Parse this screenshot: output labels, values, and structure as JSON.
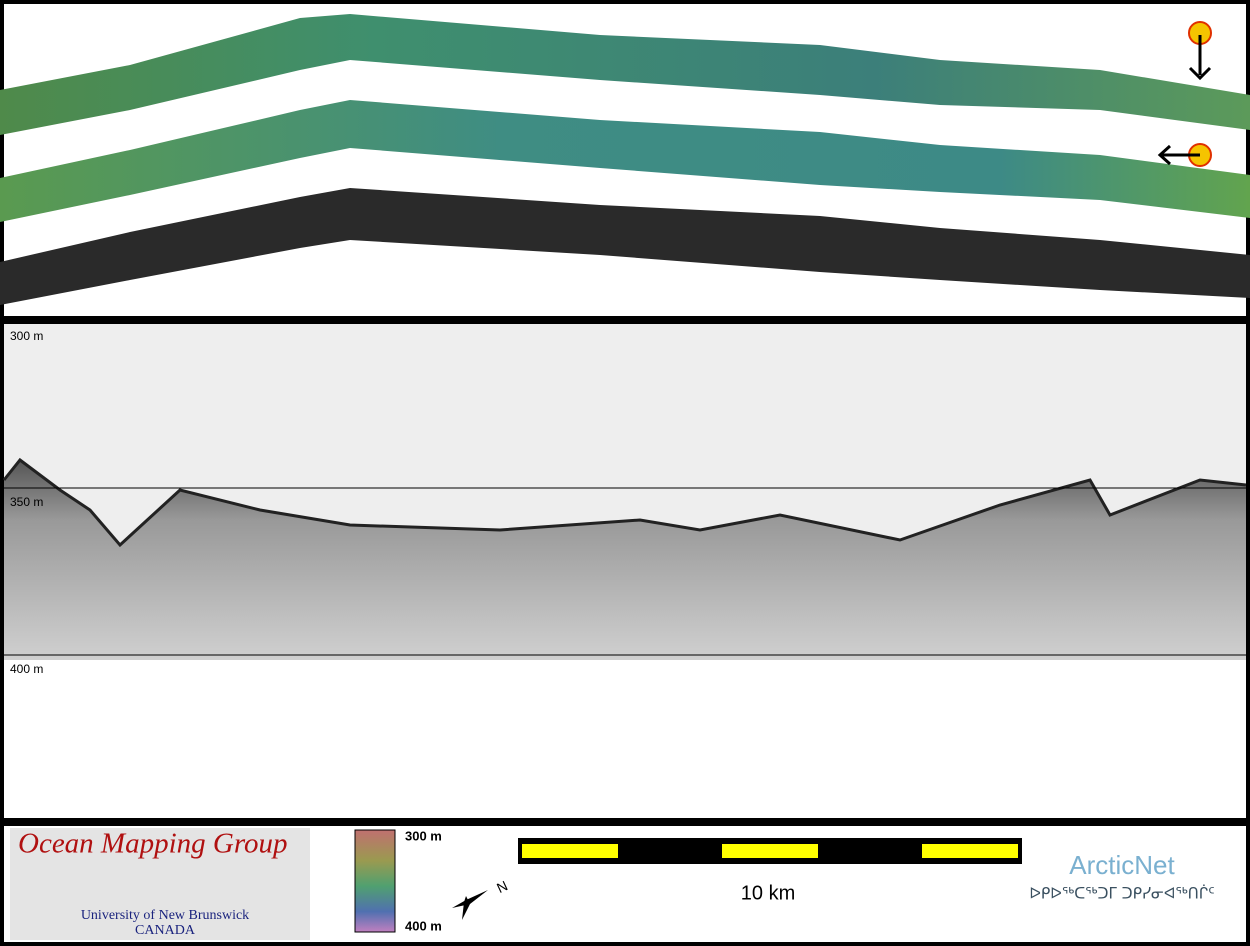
{
  "profile": {
    "depth_labels": [
      "300 m",
      "350 m",
      "400 m"
    ]
  },
  "footer": {
    "logo": {
      "title": "Ocean Mapping Group",
      "university": "University of New Brunswick",
      "country": "CANADA"
    },
    "color_scale": {
      "top": "300 m",
      "bottom": "400 m"
    },
    "north": "N",
    "scale_bar": "10 km",
    "arcticnet": {
      "name": "ArcticNet",
      "inuktitut": "ᐅᑭᐅᖅᑕᖅᑐᒥ ᑐᑭᓯᓂᐊᖅᑎᒌᑦ"
    }
  }
}
